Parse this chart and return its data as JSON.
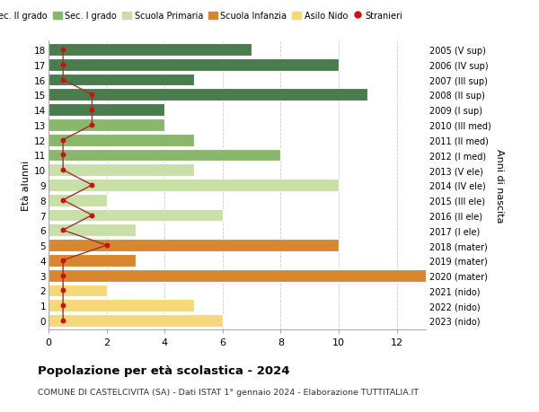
{
  "ages": [
    18,
    17,
    16,
    15,
    14,
    13,
    12,
    11,
    10,
    9,
    8,
    7,
    6,
    5,
    4,
    3,
    2,
    1,
    0
  ],
  "years": [
    "2005 (V sup)",
    "2006 (IV sup)",
    "2007 (III sup)",
    "2008 (II sup)",
    "2009 (I sup)",
    "2010 (III med)",
    "2011 (II med)",
    "2012 (I med)",
    "2013 (V ele)",
    "2014 (IV ele)",
    "2015 (III ele)",
    "2016 (II ele)",
    "2017 (I ele)",
    "2018 (mater)",
    "2019 (mater)",
    "2020 (mater)",
    "2021 (nido)",
    "2022 (nido)",
    "2023 (nido)"
  ],
  "bar_values": [
    7,
    10,
    5,
    11,
    4,
    4,
    5,
    8,
    5,
    10,
    2,
    6,
    3,
    10,
    3,
    13,
    2,
    5,
    6
  ],
  "bar_colors": [
    "#4a7c4e",
    "#4a7c4e",
    "#4a7c4e",
    "#4a7c4e",
    "#4a7c4e",
    "#8ab86a",
    "#8ab86a",
    "#8ab86a",
    "#c8e0a8",
    "#c8e0a8",
    "#c8e0a8",
    "#c8e0a8",
    "#c8e0a8",
    "#d9872e",
    "#d9872e",
    "#d9872e",
    "#f5d87a",
    "#f5d87a",
    "#f5d87a"
  ],
  "stranieri_x": [
    0.5,
    0.5,
    0.5,
    1.5,
    1.5,
    1.5,
    0.5,
    0.5,
    0.5,
    1.5,
    0.5,
    1.5,
    0.5,
    2.0,
    0.5,
    0.5,
    0.5,
    0.5,
    0.5
  ],
  "color_sec2": "#4a7c4e",
  "color_sec1": "#8ab86a",
  "color_primaria": "#c8e0a8",
  "color_infanzia": "#d9872e",
  "color_nido": "#f5d87a",
  "color_stranieri": "#cc1111",
  "color_line": "#993333",
  "title": "Popolazione per età scolastica - 2024",
  "subtitle": "COMUNE DI CASTELCIVITA (SA) - Dati ISTAT 1° gennaio 2024 - Elaborazione TUTTITALIA.IT",
  "ylabel": "Età alunni",
  "ylabel2": "Anni di nascita",
  "xlim": [
    0,
    13
  ],
  "background_color": "#ffffff",
  "grid_color": "#cccccc"
}
